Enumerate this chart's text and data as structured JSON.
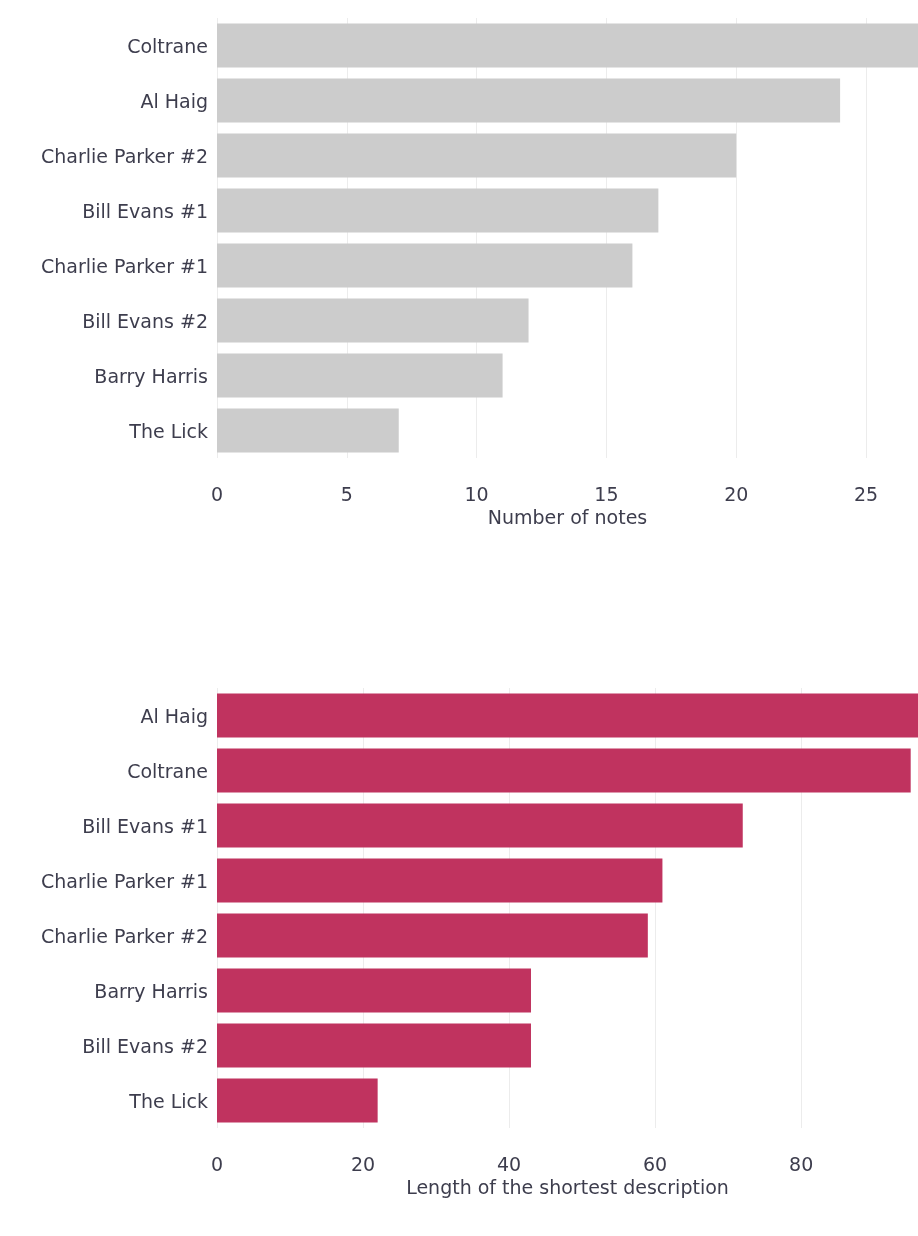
{
  "chart_data": [
    {
      "type": "bar",
      "orientation": "horizontal",
      "xlabel": "Number of notes",
      "categories": [
        "Coltrane",
        "Al Haig",
        "Charlie Parker #2",
        "Bill Evans #1",
        "Charlie Parker #1",
        "Bill Evans #2",
        "Barry Harris",
        "The Lick"
      ],
      "values": [
        27,
        24,
        20,
        17,
        16,
        12,
        11,
        7
      ],
      "color": "#cccccc",
      "xlim": [
        0,
        27
      ],
      "xticks": [
        0,
        5,
        10,
        15,
        20,
        25
      ],
      "grid": "x"
    },
    {
      "type": "bar",
      "orientation": "horizontal",
      "xlabel": "Length of the shortest description",
      "categories": [
        "Al Haig",
        "Coltrane",
        "Bill Evans #1",
        "Charlie Parker #1",
        "Charlie Parker #2",
        "Barry Harris",
        "Bill Evans #2",
        "The Lick"
      ],
      "values": [
        96,
        95,
        72,
        61,
        59,
        43,
        43,
        22
      ],
      "color": "#c0335f",
      "xlim": [
        0,
        96
      ],
      "xticks": [
        0,
        20,
        40,
        60,
        80
      ],
      "grid": "x"
    }
  ]
}
